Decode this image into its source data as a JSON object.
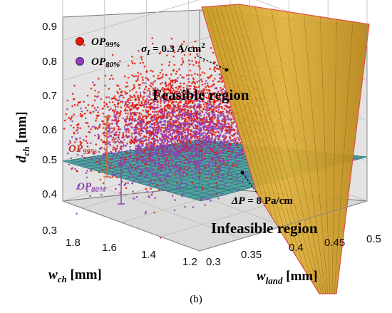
{
  "chart_data": {
    "type": "scatter",
    "dimensions": 3,
    "axes": {
      "x": {
        "label": "w",
        "subscript": "land",
        "unit": "[mm]",
        "range": [
          0.3,
          0.5
        ],
        "ticks": [
          "0.3",
          "0.35",
          "0.4",
          "0.45",
          "0.5"
        ]
      },
      "y": {
        "label": "w",
        "subscript": "ch",
        "unit": "[mm]",
        "range": [
          1.2,
          1.9
        ],
        "ticks": [
          "1.8",
          "1.6",
          "1.4",
          "1.2"
        ]
      },
      "z": {
        "label": "d",
        "subscript": "ch",
        "unit": "[mm]",
        "range": [
          0.3,
          0.9
        ],
        "ticks": [
          "0.9",
          "0.8",
          "0.7",
          "0.6",
          "0.5",
          "0.4",
          "0.3"
        ]
      }
    },
    "grid": true,
    "legend_position": "top-left",
    "series": [
      {
        "name": "OP99%",
        "label": "OP",
        "subscript": "99%",
        "color": "#e3170a",
        "center": {
          "w_land": 0.35,
          "w_ch": 1.5,
          "d_ch": 0.55
        },
        "spread": {
          "w_land": 0.05,
          "w_ch": 0.15,
          "d_ch": 0.05
        },
        "count": 2400
      },
      {
        "name": "OP80%",
        "label": "OP",
        "subscript": "80%",
        "color": "#8e3fb8",
        "center": {
          "w_land": 0.35,
          "w_ch": 1.5,
          "d_ch": 0.49
        },
        "spread": {
          "w_land": 0.045,
          "w_ch": 0.14,
          "d_ch": 0.04
        },
        "count": 1800
      }
    ],
    "surfaces": [
      {
        "name": "sigma-surface",
        "color": "#d4a017",
        "label_math": "σ",
        "label_sub": "I",
        "label_rest": " = 0.3 A/cm",
        "label_sup": "2"
      },
      {
        "name": "deltaP-surface",
        "color": "#1f8a8a",
        "label_math": "ΔP",
        "label_rest": " = 8 Pa/cm",
        "d_ch": 0.5
      }
    ],
    "annotations": {
      "feasible": "Feasible region",
      "infeasible": "Infeasible region",
      "op99_label": "OP",
      "op99_sub": "99%",
      "op80_label": "OP",
      "op80_sub": "80%"
    },
    "caption": "(b)"
  }
}
